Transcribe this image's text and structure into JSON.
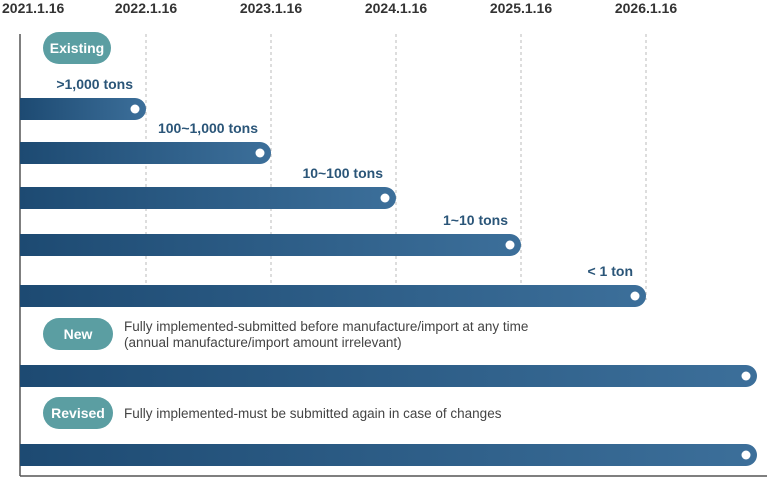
{
  "colors": {
    "bar_start": "#1d4a72",
    "bar_end": "#3c6f9a",
    "pill": "#5b9ea2",
    "label": "#2a5578",
    "grid": "#bbbbbb",
    "axis": "#555555"
  },
  "chart_data": {
    "type": "timeline-bar",
    "x_ticks": [
      "2021.1.16",
      "2022.1.16",
      "2023.1.16",
      "2024.1.16",
      "2025.1.16",
      "2026.1.16"
    ],
    "xlim": [
      "2021.1.16",
      "2026.12.31"
    ],
    "grid": true,
    "sections": [
      {
        "pill": "Existing",
        "note": [],
        "bars": [
          {
            "label": ">1,000 tons",
            "start": "2021.1.16",
            "end": "2022.1.16"
          },
          {
            "label": "100~1,000 tons",
            "start": "2021.1.16",
            "end": "2023.1.16"
          },
          {
            "label": "10~100 tons",
            "start": "2021.1.16",
            "end": "2024.1.16"
          },
          {
            "label": "1~10 tons",
            "start": "2021.1.16",
            "end": "2025.1.16"
          },
          {
            "label": "< 1 ton",
            "start": "2021.1.16",
            "end": "2026.1.16"
          }
        ]
      },
      {
        "pill": "New",
        "note": [
          "Fully implemented-submitted before manufacture/import at any time",
          "(annual manufacture/import amount irrelevant)"
        ],
        "bars": [
          {
            "label": "",
            "start": "2021.1.16",
            "end": "ongoing"
          }
        ]
      },
      {
        "pill": "Revised",
        "note": [
          "Fully implemented-must be submitted again in case of changes"
        ],
        "bars": [
          {
            "label": "",
            "start": "2021.1.16",
            "end": "ongoing"
          }
        ]
      }
    ]
  }
}
